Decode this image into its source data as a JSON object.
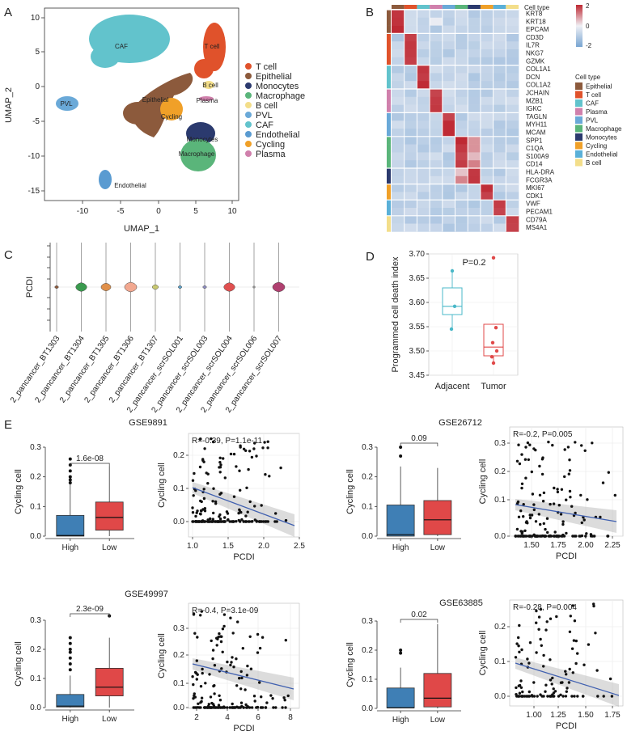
{
  "panels": {
    "A": "A",
    "B": "B",
    "C": "C",
    "D": "D",
    "E": "E"
  },
  "panel_a": {
    "xlabel": "UMAP_1",
    "ylabel": "UMAP_2",
    "xticks": [
      "-10",
      "-5",
      "0",
      "5",
      "10"
    ],
    "yticks": [
      "10",
      "5",
      "0",
      "-5",
      "-10",
      "-15"
    ],
    "cluster_labels": [
      "CAF",
      "T cell",
      "B cell",
      "Plasma",
      "PVL",
      "Epithelial",
      "Cycling",
      "Monocytes",
      "Macrophage",
      "Endothelial"
    ],
    "legend": [
      {
        "label": "T cell",
        "color": "#e0522b"
      },
      {
        "label": "Epithelial",
        "color": "#8c5a3c"
      },
      {
        "label": "Monocytes",
        "color": "#2b3a6e"
      },
      {
        "label": "Macrophage",
        "color": "#5ab57a"
      },
      {
        "label": "B cell",
        "color": "#f3de8a"
      },
      {
        "label": "PVL",
        "color": "#6aa9d8"
      },
      {
        "label": "CAF",
        "color": "#62c3cc"
      },
      {
        "label": "Endothelial",
        "color": "#5a9bd1"
      },
      {
        "label": "Cycling",
        "color": "#f0a028"
      },
      {
        "label": "Plasma",
        "color": "#d080ac"
      }
    ]
  },
  "panel_b": {
    "header": "Cell type",
    "genes": [
      "KRT8",
      "KRT18",
      "EPCAM",
      "CD3D",
      "IL7R",
      "NKG7",
      "GZMK",
      "COL1A1",
      "DCN",
      "COL1A2",
      "JCHAIN",
      "MZB1",
      "IGKC",
      "TAGLN",
      "MYH11",
      "MCAM",
      "SPP1",
      "C1QA",
      "S100A9",
      "CD14",
      "HLA-DRA",
      "FCGR3A",
      "MKI67",
      "CDK1",
      "VWF",
      "PECAM1",
      "CD79A",
      "MS4A1"
    ],
    "colorbar_ticks": [
      "2",
      "0",
      "-2"
    ],
    "legend_title": "Cell type",
    "legend": [
      {
        "label": "Epithelial",
        "color": "#8c5a3c"
      },
      {
        "label": "T cell",
        "color": "#e0522b"
      },
      {
        "label": "CAF",
        "color": "#62c3cc"
      },
      {
        "label": "Plasma",
        "color": "#d080ac"
      },
      {
        "label": "PVL",
        "color": "#6aa9d8"
      },
      {
        "label": "Macrophage",
        "color": "#5ab57a"
      },
      {
        "label": "Monocytes",
        "color": "#2b3a6e"
      },
      {
        "label": "Cycling",
        "color": "#f0a028"
      },
      {
        "label": "Endothelial",
        "color": "#5ab0d8"
      },
      {
        "label": "B cell",
        "color": "#f3de8a"
      }
    ]
  },
  "panel_c": {
    "ylabel": "PCDI",
    "samples": [
      "2_pancancer_BT1303",
      "2_pancancer_BT1304",
      "2_pancancer_BT1305",
      "2_pancancer_BT1306",
      "2_pancancer_BT1307",
      "2_pancancer_scrSOL001",
      "2_pancancer_scrSOL003",
      "2_pancancer_scrSOL004",
      "2_pancancer_scrSOL006",
      "2_pancancer_scrSOL007"
    ],
    "colors": [
      "#8c5a3c",
      "#3a9a4e",
      "#e0904a",
      "#f2a890",
      "#c8c870",
      "#5aa0c8",
      "#8c8cc0",
      "#e05050",
      "#a0a0a0",
      "#b04070"
    ],
    "widths": [
      3,
      9,
      8,
      10,
      5,
      3,
      3,
      9,
      2,
      10
    ]
  },
  "chart_data": [
    {
      "type": "boxplot",
      "panel": "D",
      "title": "",
      "ylabel": "Programmed cell death index",
      "categories": [
        "Adjacent",
        "Tumor"
      ],
      "ylim": [
        3.45,
        3.7
      ],
      "yticks": [
        "3.70",
        "3.65",
        "3.60",
        "3.55",
        "3.50",
        "3.45"
      ],
      "annotation": "P=0.2",
      "points": {
        "Adjacent": [
          3.665,
          3.592,
          3.545
        ],
        "Tumor": [
          3.692,
          3.548,
          3.517,
          3.5,
          3.488,
          3.475
        ]
      }
    },
    {
      "type": "boxplot",
      "panel": "E",
      "title": "GSE9891",
      "ylabel": "Cycling cell",
      "categories": [
        "High",
        "Low"
      ],
      "ylim": [
        0,
        0.3
      ],
      "yticks": [
        "0.3",
        "0.2",
        "0.1",
        "0.0"
      ],
      "annotation": "1.6e-08"
    },
    {
      "type": "scatter",
      "panel": "E",
      "title": "GSE9891",
      "xlabel": "PCDI",
      "ylabel": "Cycling cell",
      "annotation": "R=-0.39, P=1.1e-11",
      "xticks": [
        "1.0",
        "1.5",
        "2.0",
        "2.5"
      ],
      "yticks": [
        "0.2",
        "0.1",
        "0.0"
      ]
    },
    {
      "type": "boxplot",
      "panel": "E",
      "title": "GSE26712",
      "ylabel": "Cycling cell",
      "categories": [
        "High",
        "Low"
      ],
      "ylim": [
        0,
        0.3
      ],
      "yticks": [
        "0.3",
        "0.2",
        "0.1",
        "0.0"
      ],
      "annotation": "0.09"
    },
    {
      "type": "scatter",
      "panel": "E",
      "title": "GSE26712",
      "xlabel": "PCDI",
      "ylabel": "Cycling cell",
      "annotation": "R=-0.2, P=0.005",
      "xticks": [
        "1.50",
        "1.75",
        "2.00",
        "2.25"
      ],
      "yticks": [
        "0.3",
        "0.2",
        "0.1",
        "0.0"
      ]
    },
    {
      "type": "boxplot",
      "panel": "E",
      "title": "GSE49997",
      "ylabel": "Cycling cell",
      "categories": [
        "High",
        "Low"
      ],
      "ylim": [
        0,
        0.3
      ],
      "yticks": [
        "0.3",
        "0.2",
        "0.1",
        "0.0"
      ],
      "annotation": "2.3e-09"
    },
    {
      "type": "scatter",
      "panel": "E",
      "title": "GSE49997",
      "xlabel": "PCDI",
      "ylabel": "Cycling cell",
      "annotation": "R=-0.4, P=3.1e-09",
      "xticks": [
        "2",
        "4",
        "6",
        "8"
      ],
      "yticks": [
        "0.3",
        "0.2",
        "0.1",
        "0.0"
      ]
    },
    {
      "type": "boxplot",
      "panel": "E",
      "title": "GSE63885",
      "ylabel": "Cycling cell",
      "categories": [
        "High",
        "Low"
      ],
      "ylim": [
        0,
        0.3
      ],
      "yticks": [
        "0.3",
        "0.2",
        "0.1",
        "0.0"
      ],
      "annotation": "0.02"
    },
    {
      "type": "scatter",
      "panel": "E",
      "title": "GSE63885",
      "xlabel": "PCDI",
      "ylabel": "Cycling cell",
      "annotation": "R=-0.28, P=0.004",
      "xticks": [
        "1.00",
        "1.25",
        "1.50",
        "1.75"
      ],
      "yticks": [
        "0.2",
        "0.1",
        "0.0"
      ]
    }
  ],
  "colors": {
    "high_box": "#3f7fb5",
    "low_box": "#e04848",
    "adjacent": "#4ab8c8",
    "tumor": "#e04848",
    "regression": "#4060b0"
  }
}
